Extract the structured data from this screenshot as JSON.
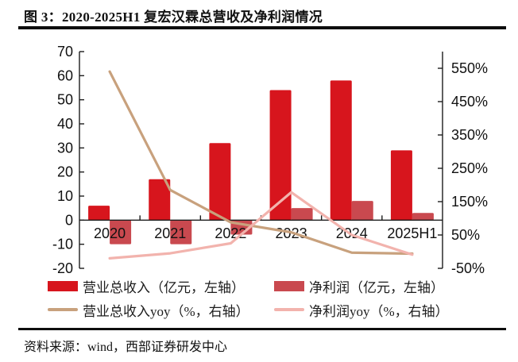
{
  "header": {
    "title": "图 3：2020-2025H1 复宏汉霖总营收及净利润情况"
  },
  "footer": {
    "text": "资料来源：wind，西部证券研发中心"
  },
  "chart_data": {
    "type": "bar+line combo",
    "categories": [
      "2020",
      "2021",
      "2022",
      "2023",
      "2024",
      "2025H1"
    ],
    "series": [
      {
        "key": "total_revenue",
        "label": "营业总收入（亿元，左轴）",
        "type": "bar",
        "axis": "left",
        "color": "#d7151d",
        "values": [
          6,
          17,
          32,
          54,
          58,
          29
        ]
      },
      {
        "key": "net_profit",
        "label": "净利润（亿元，左轴）",
        "type": "bar",
        "axis": "left",
        "color": "#c9494f",
        "values": [
          -10,
          -10,
          -6,
          5,
          8,
          3
        ]
      },
      {
        "key": "total_revenue_yoy",
        "label": "营业总收入yoy（%，右轴）",
        "type": "line",
        "axis": "right",
        "color": "#c8a17d",
        "values": [
          540,
          185,
          88,
          58,
          -3,
          -6
        ]
      },
      {
        "key": "net_profit_yoy",
        "label": "净利润yoy（%，右轴）",
        "type": "line",
        "axis": "right",
        "color": "#f2b3ad",
        "values": [
          -20,
          -5,
          25,
          178,
          50,
          -9
        ]
      }
    ],
    "left_axis": {
      "min": -20,
      "max": 70,
      "tick_step": 10,
      "ticks": [
        70,
        60,
        50,
        40,
        30,
        20,
        10,
        0,
        -10,
        -20
      ]
    },
    "right_axis": {
      "min": -50,
      "max": 600,
      "tick_values": [
        550,
        450,
        350,
        250,
        150,
        50,
        -50
      ],
      "tick_labels": [
        "550%",
        "450%",
        "350%",
        "250%",
        "150%",
        "50%",
        "-50%"
      ]
    },
    "grid": false,
    "legend_position": "bottom",
    "axis_color": "#1d1d1d",
    "text_color": "#111111"
  }
}
